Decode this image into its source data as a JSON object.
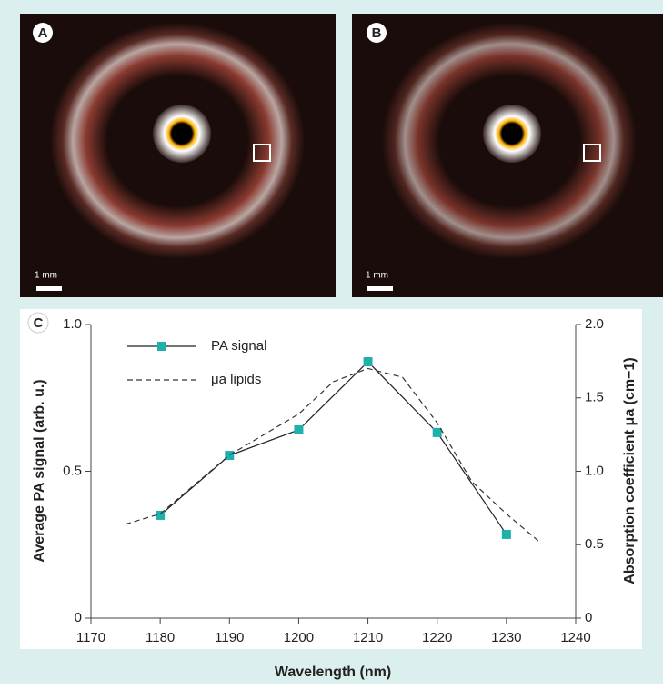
{
  "panels": [
    {
      "label": "A",
      "scale_bar": "1 mm"
    },
    {
      "label": "B",
      "scale_bar": "1 mm"
    }
  ],
  "chart_data": {
    "type": "line",
    "panel_label": "C",
    "x_label": "Wavelength (nm)",
    "y_label": "Average PA signal (arb. u.)",
    "y2_label": "Absorption coefficient μa (cm−1)",
    "xlim": [
      1170,
      1240
    ],
    "xticks": [
      1170,
      1180,
      1190,
      1200,
      1210,
      1220,
      1230,
      1240
    ],
    "ylim": [
      0,
      1
    ],
    "yticks": [
      0,
      0.5,
      {
        "value": 1,
        "label": "1.0"
      }
    ],
    "y2lim": [
      0,
      2
    ],
    "y2ticks": [
      0,
      0.5,
      {
        "value": 1,
        "label": "1.0"
      },
      1.5,
      {
        "value": 2,
        "label": "2.0"
      }
    ],
    "series": [
      {
        "name": "PA signal",
        "color": "#1fb0ac",
        "x": [
          1180,
          1190,
          1200,
          1210,
          1220,
          1230
        ],
        "values": [
          0.35,
          0.554,
          0.641,
          0.873,
          0.632,
          0.285
        ]
      },
      {
        "name": "μa lipids",
        "color": "#333333",
        "axis": "y2",
        "x": [
          1175,
          1180,
          1190,
          1200,
          1205,
          1210,
          1215,
          1220,
          1225,
          1230,
          1235
        ],
        "values": [
          0.64,
          0.71,
          1.11,
          1.39,
          1.61,
          1.7,
          1.64,
          1.33,
          0.93,
          0.71,
          0.51
        ]
      }
    ]
  }
}
